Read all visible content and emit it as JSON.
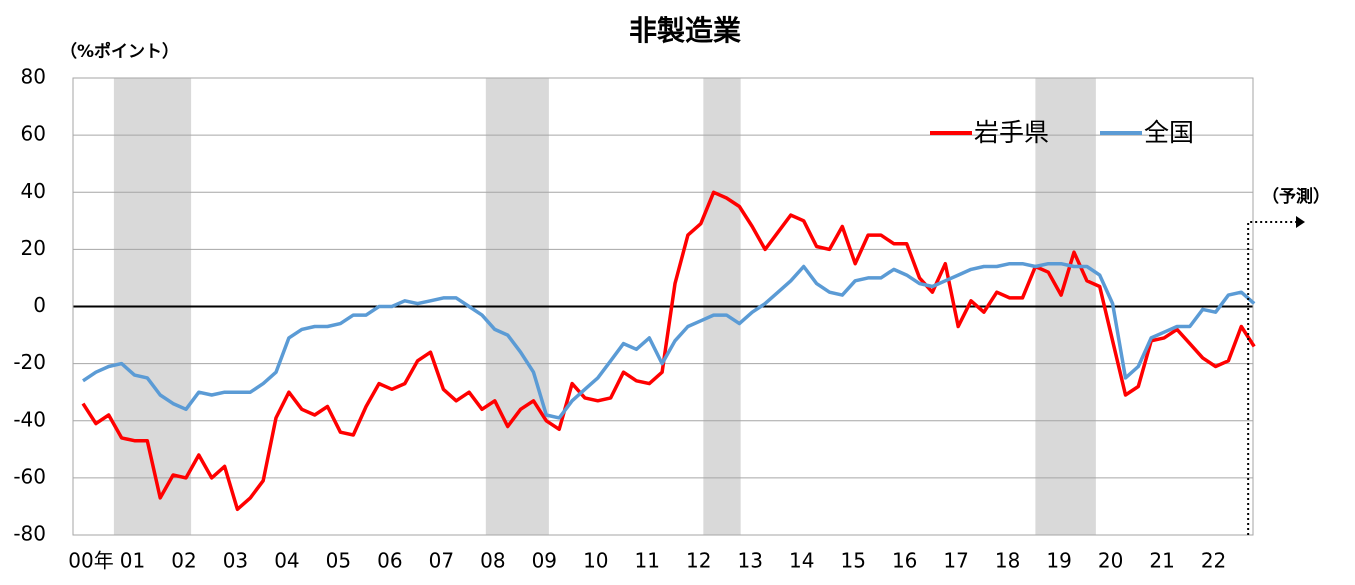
{
  "chart_data": {
    "type": "line",
    "title": "非製造業",
    "y_label": "（%ポイント）",
    "categories": [
      "00年",
      null,
      null,
      null,
      "01",
      null,
      null,
      null,
      "02",
      null,
      null,
      null,
      "03",
      null,
      null,
      null,
      "04",
      null,
      null,
      null,
      "05",
      null,
      null,
      null,
      "06",
      null,
      null,
      null,
      "07",
      null,
      null,
      null,
      "08",
      null,
      null,
      null,
      "09",
      null,
      null,
      null,
      "10",
      null,
      null,
      null,
      "11",
      null,
      null,
      null,
      "12",
      null,
      null,
      null,
      "13",
      null,
      null,
      null,
      "14",
      null,
      null,
      null,
      "15",
      null,
      null,
      null,
      "16",
      null,
      null,
      null,
      "17",
      null,
      null,
      null,
      "18",
      null,
      null,
      null,
      "19",
      null,
      null,
      null,
      "20",
      null,
      null,
      null,
      "21",
      null,
      null,
      null,
      "22",
      null,
      null,
      null
    ],
    "series": [
      {
        "name": "岩手県",
        "color": "#ff0000",
        "values": [
          -34,
          -41,
          -38,
          -46,
          -47,
          -47,
          -67,
          -59,
          -60,
          -52,
          -60,
          -56,
          -71,
          -67,
          -61,
          -39,
          -30,
          -36,
          -38,
          -35,
          -44,
          -45,
          -35,
          -27,
          -29,
          -27,
          -19,
          -16,
          -29,
          -33,
          -30,
          -36,
          -33,
          -42,
          -36,
          -33,
          -40,
          -43,
          -27,
          -32,
          -33,
          -32,
          -23,
          -26,
          -27,
          -23,
          8,
          25,
          29,
          40,
          38,
          35,
          28,
          20,
          26,
          32,
          30,
          21,
          20,
          28,
          15,
          25,
          25,
          22,
          22,
          10,
          5,
          15,
          -7,
          2,
          -2,
          5,
          3,
          3,
          14,
          12,
          4,
          19,
          9,
          7,
          -12,
          -31,
          -28,
          -12,
          -11,
          -8,
          -13,
          -18,
          -21,
          -19,
          -7,
          -14
        ]
      },
      {
        "name": "全国",
        "color": "#5b9bd5",
        "values": [
          -26,
          -23,
          -21,
          -20,
          -24,
          -25,
          -31,
          -34,
          -36,
          -30,
          -31,
          -30,
          -30,
          -30,
          -27,
          -23,
          -11,
          -8,
          -7,
          -7,
          -6,
          -3,
          -3,
          0,
          0,
          2,
          1,
          2,
          3,
          3,
          0,
          -3,
          -8,
          -10,
          -16,
          -23,
          -38,
          -39,
          -33,
          -29,
          -25,
          -19,
          -13,
          -15,
          -11,
          -20,
          -12,
          -7,
          -5,
          -3,
          -3,
          -6,
          -2,
          1,
          5,
          9,
          14,
          8,
          5,
          4,
          9,
          10,
          10,
          13,
          11,
          8,
          7,
          9,
          11,
          13,
          14,
          14,
          15,
          15,
          14,
          15,
          15,
          14,
          14,
          11,
          1,
          -25,
          -21,
          -11,
          -9,
          -7,
          -7,
          -1,
          -2,
          4,
          5,
          1
        ]
      }
    ],
    "shaded_periods": [
      [
        2.4,
        8.4
      ],
      [
        31.3,
        36.2
      ],
      [
        48.2,
        51.1
      ],
      [
        74,
        78.7
      ]
    ],
    "ylim": [
      -80,
      80
    ],
    "yticks": [
      -80,
      -60,
      -40,
      -20,
      0,
      20,
      40,
      60,
      80
    ],
    "grid": true,
    "legend": "upper right",
    "forecast_label": "（予測）"
  }
}
